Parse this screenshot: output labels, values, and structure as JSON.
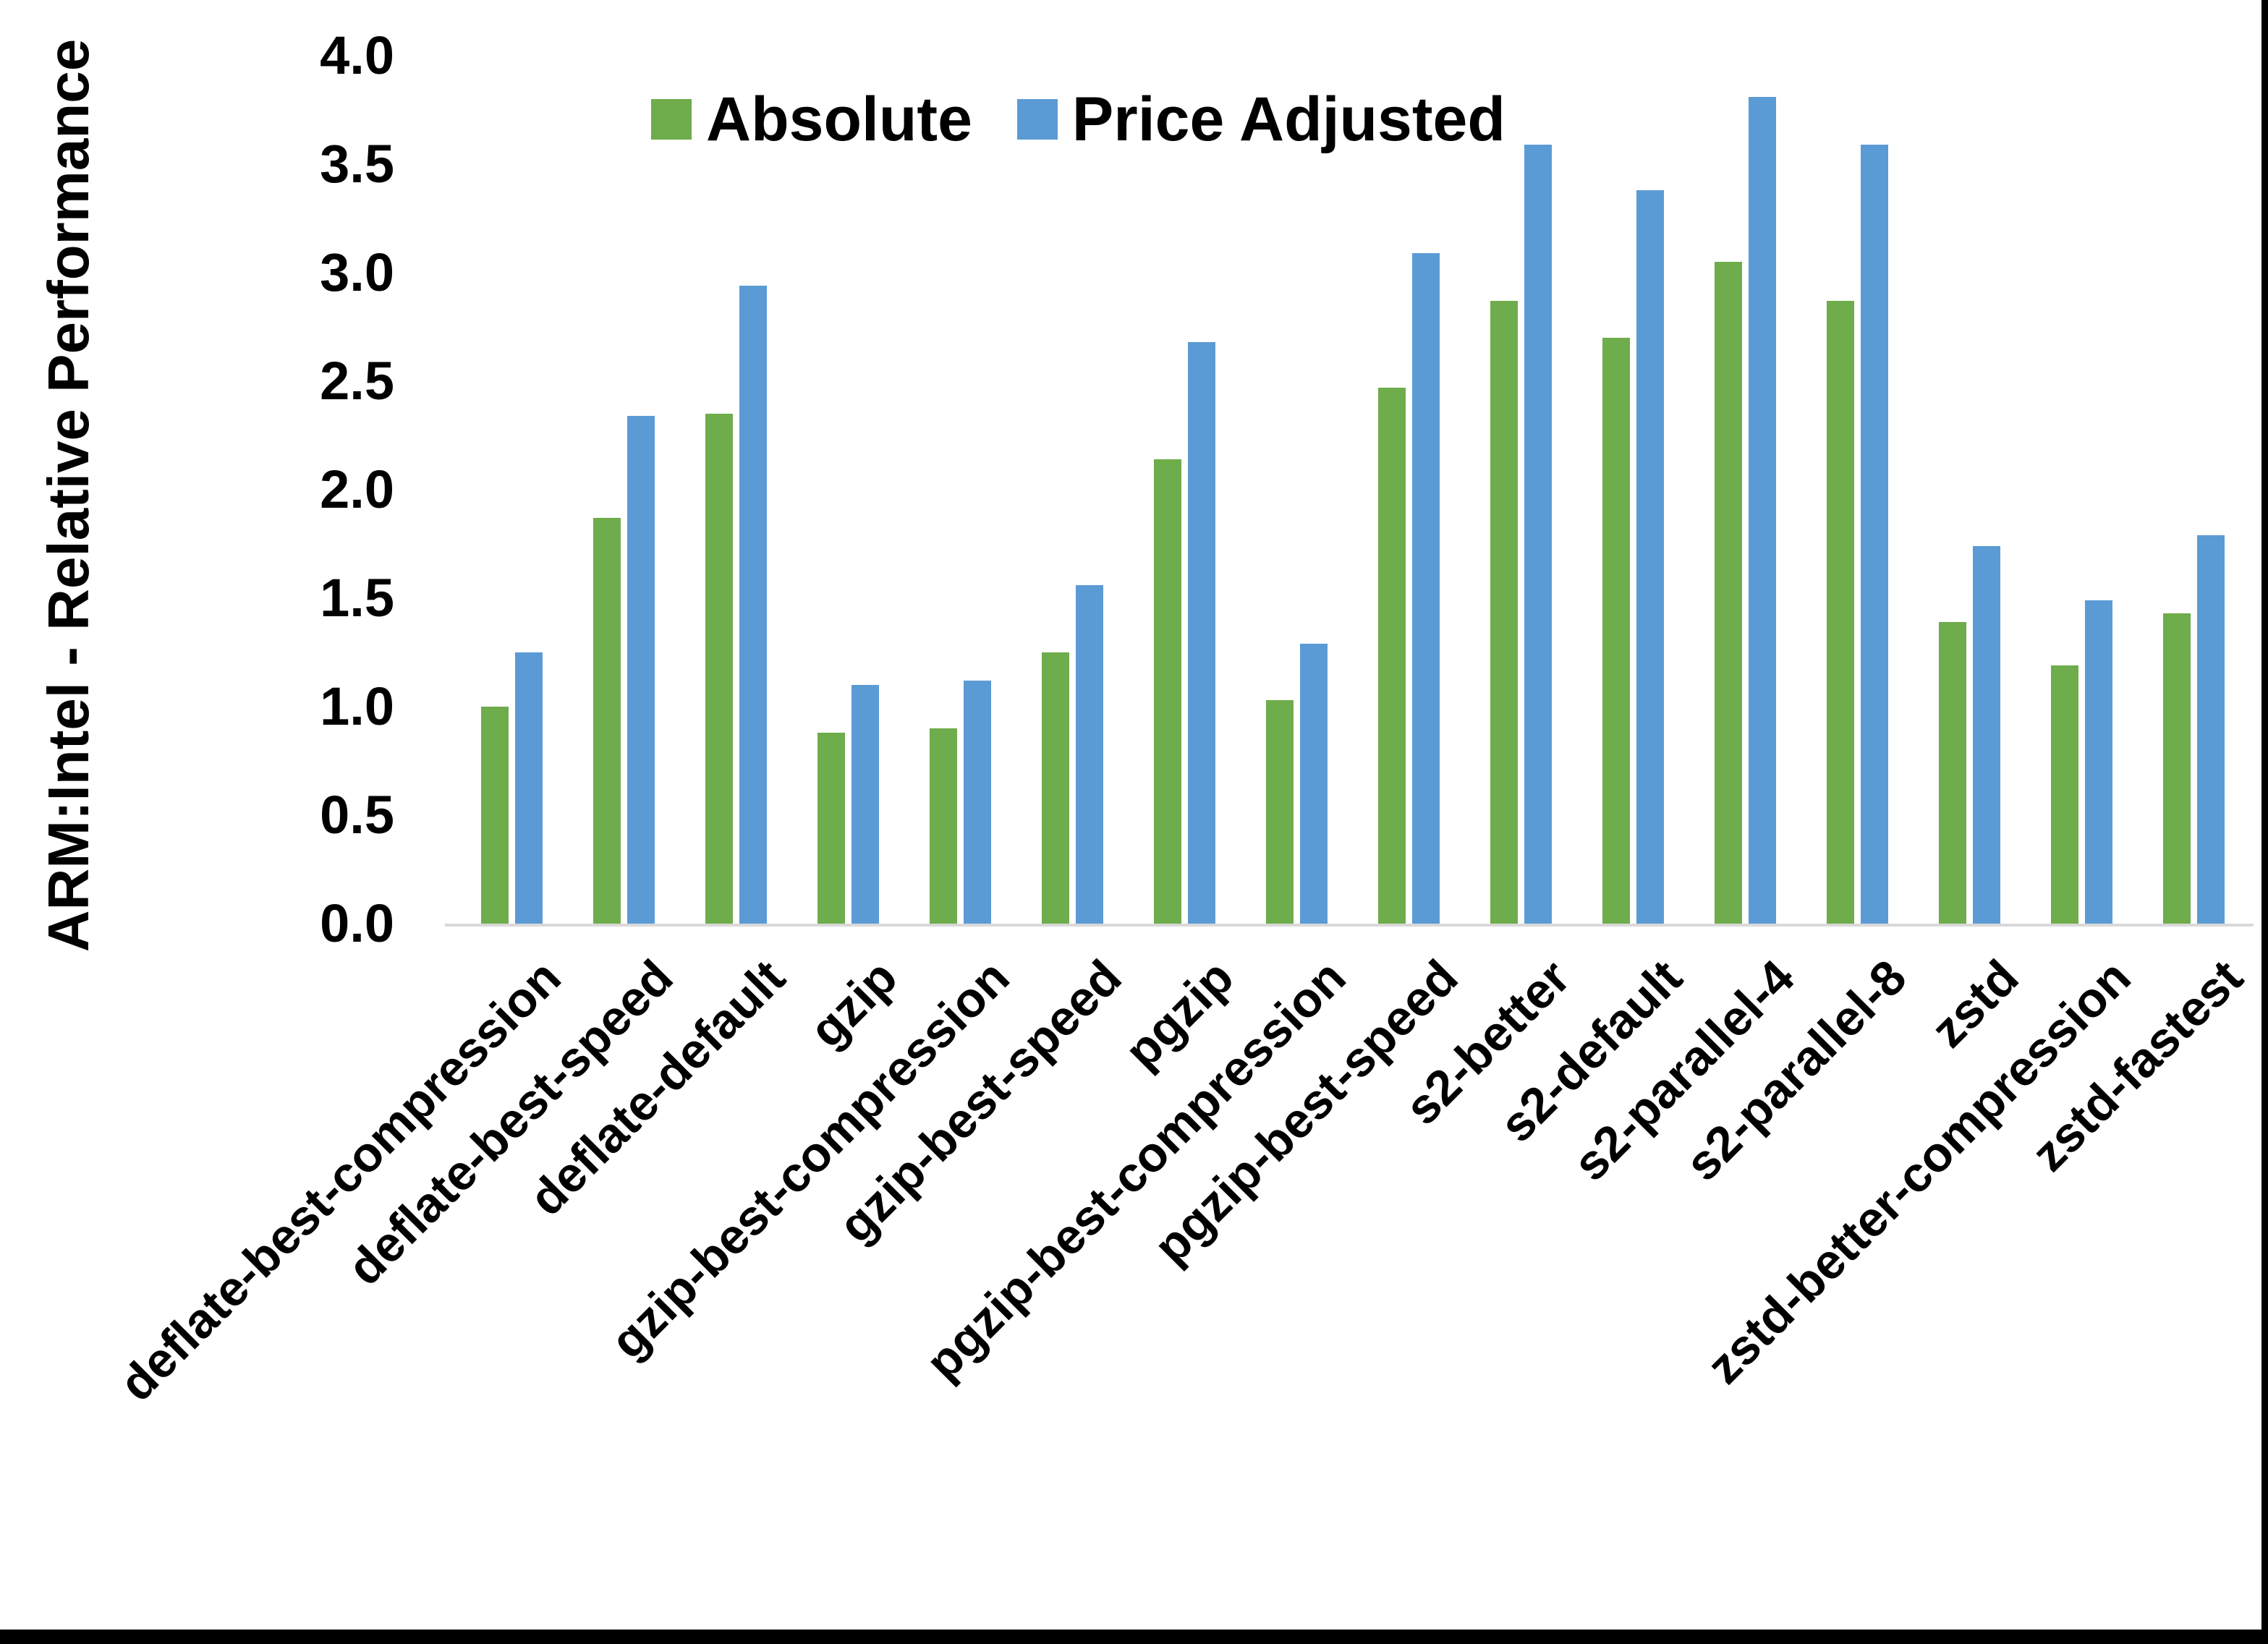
{
  "chart_data": {
    "type": "bar",
    "title": "",
    "xlabel": "",
    "ylabel": "ARM:Intel - Relative Performance",
    "ylim": [
      0.0,
      4.0
    ],
    "ytick_step": 0.5,
    "yticks": [
      "0.0",
      "0.5",
      "1.0",
      "1.5",
      "2.0",
      "2.5",
      "3.0",
      "3.5",
      "4.0"
    ],
    "grid": false,
    "legend_position": "top-center",
    "categories": [
      "deflate-best-compression",
      "deflate-best-speed",
      "deflate-default",
      "gzip",
      "gzip-best-compression",
      "gzip-best-speed",
      "pgzip",
      "pgzip-best-compression",
      "pgzip-best-speed",
      "s2-better",
      "s2-default",
      "s2-parallel-4",
      "s2-parallel-8",
      "zstd",
      "zstd-better-compression",
      "zstd-fastest"
    ],
    "series": [
      {
        "name": "Absolute",
        "color": "#6fac4b",
        "values": [
          1.0,
          1.87,
          2.35,
          0.88,
          0.9,
          1.25,
          2.14,
          1.03,
          2.47,
          2.87,
          2.7,
          3.05,
          2.87,
          1.39,
          1.19,
          1.43
        ]
      },
      {
        "name": "Price Adjusted",
        "color": "#5b9bd5",
        "values": [
          1.25,
          2.34,
          2.94,
          1.1,
          1.12,
          1.56,
          2.68,
          1.29,
          3.09,
          3.59,
          3.38,
          3.81,
          3.59,
          1.74,
          1.49,
          1.79
        ]
      }
    ]
  },
  "colors": {
    "axis_line": "#d9d9d9",
    "text": "#000000",
    "background": "#ffffff",
    "edge": "#000000"
  }
}
